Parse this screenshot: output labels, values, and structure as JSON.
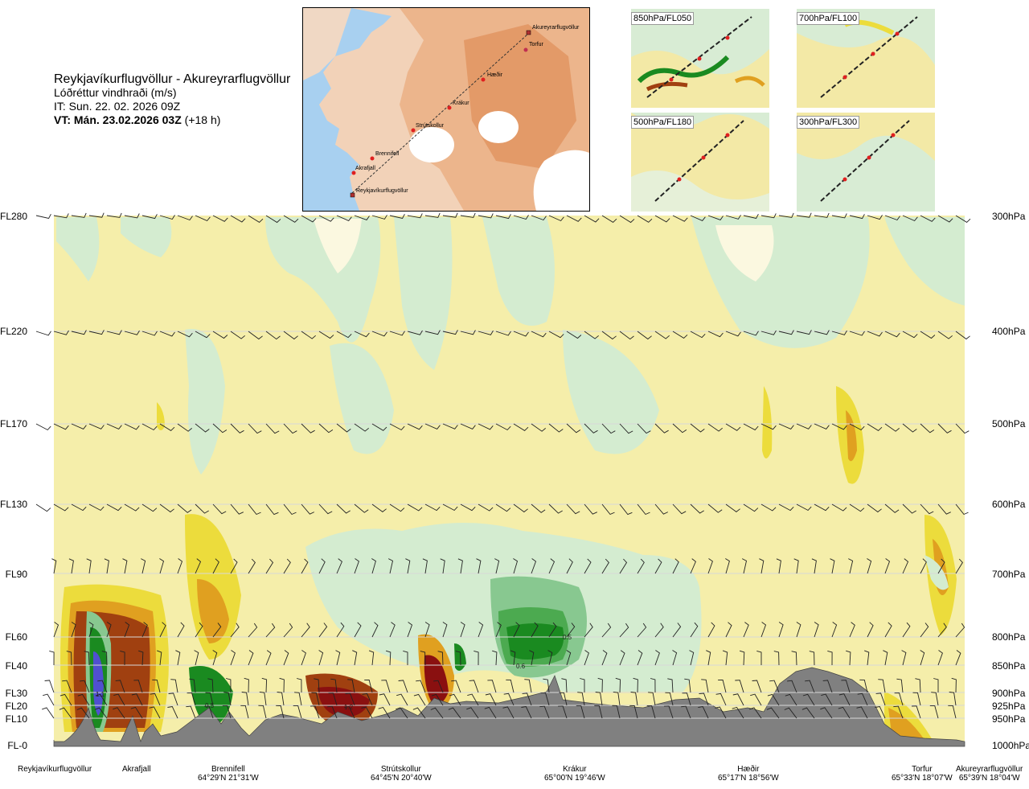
{
  "title": {
    "route": "Reykjavíkurflugvöllur - Akureyrarflugvöllur",
    "variable": "Lóðréttur vindhraði (m/s)",
    "it": "IT: Sun. 22. 02. 2026 09Z",
    "vt_bold": "VT: Mán. 23.02.2026 03Z",
    "vt_offset": "(+18 h)"
  },
  "map": {
    "places": [
      {
        "name": "Akureyrarflugvöllur"
      },
      {
        "name": "Torfur"
      },
      {
        "name": "Hæðir"
      },
      {
        "name": "Krákur"
      },
      {
        "name": "Strútskollur"
      },
      {
        "name": "Brennifell"
      },
      {
        "name": "Akrafjall"
      },
      {
        "name": "Reykjavíkurflugvöllur"
      }
    ]
  },
  "mini_maps": [
    {
      "label": "850hPa/FL050"
    },
    {
      "label": "700hPa/FL100"
    },
    {
      "label": "500hPa/FL180"
    },
    {
      "label": "300hPa/FL300"
    }
  ],
  "levels": [
    {
      "fl": "FL280",
      "hpa": "300hPa"
    },
    {
      "fl": "FL220",
      "hpa": "400hPa"
    },
    {
      "fl": "FL170",
      "hpa": "500hPa"
    },
    {
      "fl": "FL130",
      "hpa": "600hPa"
    },
    {
      "fl": "FL90",
      "hpa": "700hPa"
    },
    {
      "fl": "FL60",
      "hpa": "800hPa"
    },
    {
      "fl": "FL40",
      "hpa": "850hPa"
    },
    {
      "fl": "FL30",
      "hpa": "900hPa"
    },
    {
      "fl": "FL20",
      "hpa": "925hPa"
    },
    {
      "fl": "FL10",
      "hpa": "950hPa"
    },
    {
      "fl": "FL-0",
      "hpa": "1000hPa"
    }
  ],
  "locations": [
    {
      "name": "Reykjavíkurflugvöllur",
      "coord": ""
    },
    {
      "name": "Akrafjall",
      "coord": ""
    },
    {
      "name": "Brennifell",
      "coord": "64°29'N 21°31'W"
    },
    {
      "name": "Strútskollur",
      "coord": "64°45'N 20°40'W"
    },
    {
      "name": "Krákur",
      "coord": "65°00'N 19°46'W"
    },
    {
      "name": "Hæðir",
      "coord": "65°17'N 18°56'W"
    },
    {
      "name": "Torfur",
      "coord": "65°33'N 18°07'W"
    },
    {
      "name": "Akureyrarflugvöllur",
      "coord": "65°39'N 18°04'W"
    }
  ],
  "contour_labels": [
    "1.1",
    "0.5",
    "0.5",
    "1.2",
    "0.5",
    "0.6"
  ],
  "colors": {
    "terrain": "#808080",
    "pale_yellow": "#f5eeaa",
    "yellow": "#ecdc3c",
    "orange": "#e0a020",
    "brown": "#a04010",
    "dark_red": "#8a1010",
    "pale_green": "#d4ecd0",
    "green": "#88c890",
    "dark_green": "#1a8a20",
    "blue": "#5050d0",
    "sea": "#a8d0f0",
    "land_low": "#f0c8a8",
    "land_high": "#e8a070"
  }
}
